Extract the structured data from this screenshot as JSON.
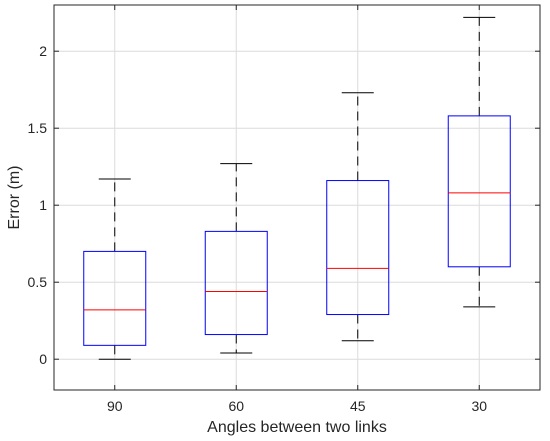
{
  "chart_data": {
    "type": "box",
    "xlabel": "Angles between two links",
    "ylabel": "Error (m)",
    "ylim": [
      -0.2,
      2.3
    ],
    "yticks": [
      0,
      0.5,
      1,
      1.5,
      2
    ],
    "ytick_labels": [
      "0",
      "0.5",
      "1",
      "1.5",
      "2"
    ],
    "grid": true,
    "categories": [
      "90",
      "60",
      "45",
      "30"
    ],
    "boxes": [
      {
        "category": "90",
        "whisker_low": 0.0,
        "q1": 0.09,
        "median": 0.32,
        "q3": 0.7,
        "whisker_high": 1.17
      },
      {
        "category": "60",
        "whisker_low": 0.04,
        "q1": 0.16,
        "median": 0.44,
        "q3": 0.83,
        "whisker_high": 1.27
      },
      {
        "category": "45",
        "whisker_low": 0.12,
        "q1": 0.29,
        "median": 0.59,
        "q3": 1.16,
        "whisker_high": 1.73
      },
      {
        "category": "30",
        "whisker_low": 0.34,
        "q1": 0.6,
        "median": 1.08,
        "q3": 1.58,
        "whisker_high": 2.22
      }
    ],
    "colors": {
      "box": "#0000ff",
      "median": "#ff0000",
      "whisker": "#000000",
      "grid": "#dcdcdc",
      "axis": "#262626"
    }
  }
}
